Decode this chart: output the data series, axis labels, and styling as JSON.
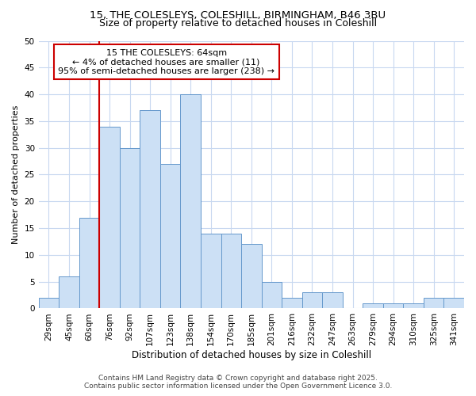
{
  "title1": "15, THE COLESLEYS, COLESHILL, BIRMINGHAM, B46 3BU",
  "title2": "Size of property relative to detached houses in Coleshill",
  "xlabel": "Distribution of detached houses by size in Coleshill",
  "ylabel": "Number of detached properties",
  "categories": [
    "29sqm",
    "45sqm",
    "60sqm",
    "76sqm",
    "92sqm",
    "107sqm",
    "123sqm",
    "138sqm",
    "154sqm",
    "170sqm",
    "185sqm",
    "201sqm",
    "216sqm",
    "232sqm",
    "247sqm",
    "263sqm",
    "279sqm",
    "294sqm",
    "310sqm",
    "325sqm",
    "341sqm"
  ],
  "values": [
    2,
    6,
    17,
    34,
    30,
    37,
    27,
    40,
    14,
    14,
    12,
    5,
    2,
    3,
    3,
    0,
    1,
    1,
    1,
    2,
    2
  ],
  "bar_color": "#cce0f5",
  "bar_edge_color": "#6699cc",
  "red_line_index": 2,
  "annotation_title": "15 THE COLESLEYS: 64sqm",
  "annotation_line1": "← 4% of detached houses are smaller (11)",
  "annotation_line2": "95% of semi-detached houses are larger (238) →",
  "annotation_box_color": "#ffffff",
  "annotation_border_color": "#cc0000",
  "red_line_color": "#cc0000",
  "ylim": [
    0,
    50
  ],
  "yticks": [
    0,
    5,
    10,
    15,
    20,
    25,
    30,
    35,
    40,
    45,
    50
  ],
  "footer1": "Contains HM Land Registry data © Crown copyright and database right 2025.",
  "footer2": "Contains public sector information licensed under the Open Government Licence 3.0.",
  "background_color": "#ffffff",
  "grid_color": "#c8d8f0",
  "title1_fontsize": 9.5,
  "title2_fontsize": 9,
  "xlabel_fontsize": 8.5,
  "ylabel_fontsize": 8,
  "tick_fontsize": 7.5,
  "footer_fontsize": 6.5,
  "bar_width": 1.0
}
